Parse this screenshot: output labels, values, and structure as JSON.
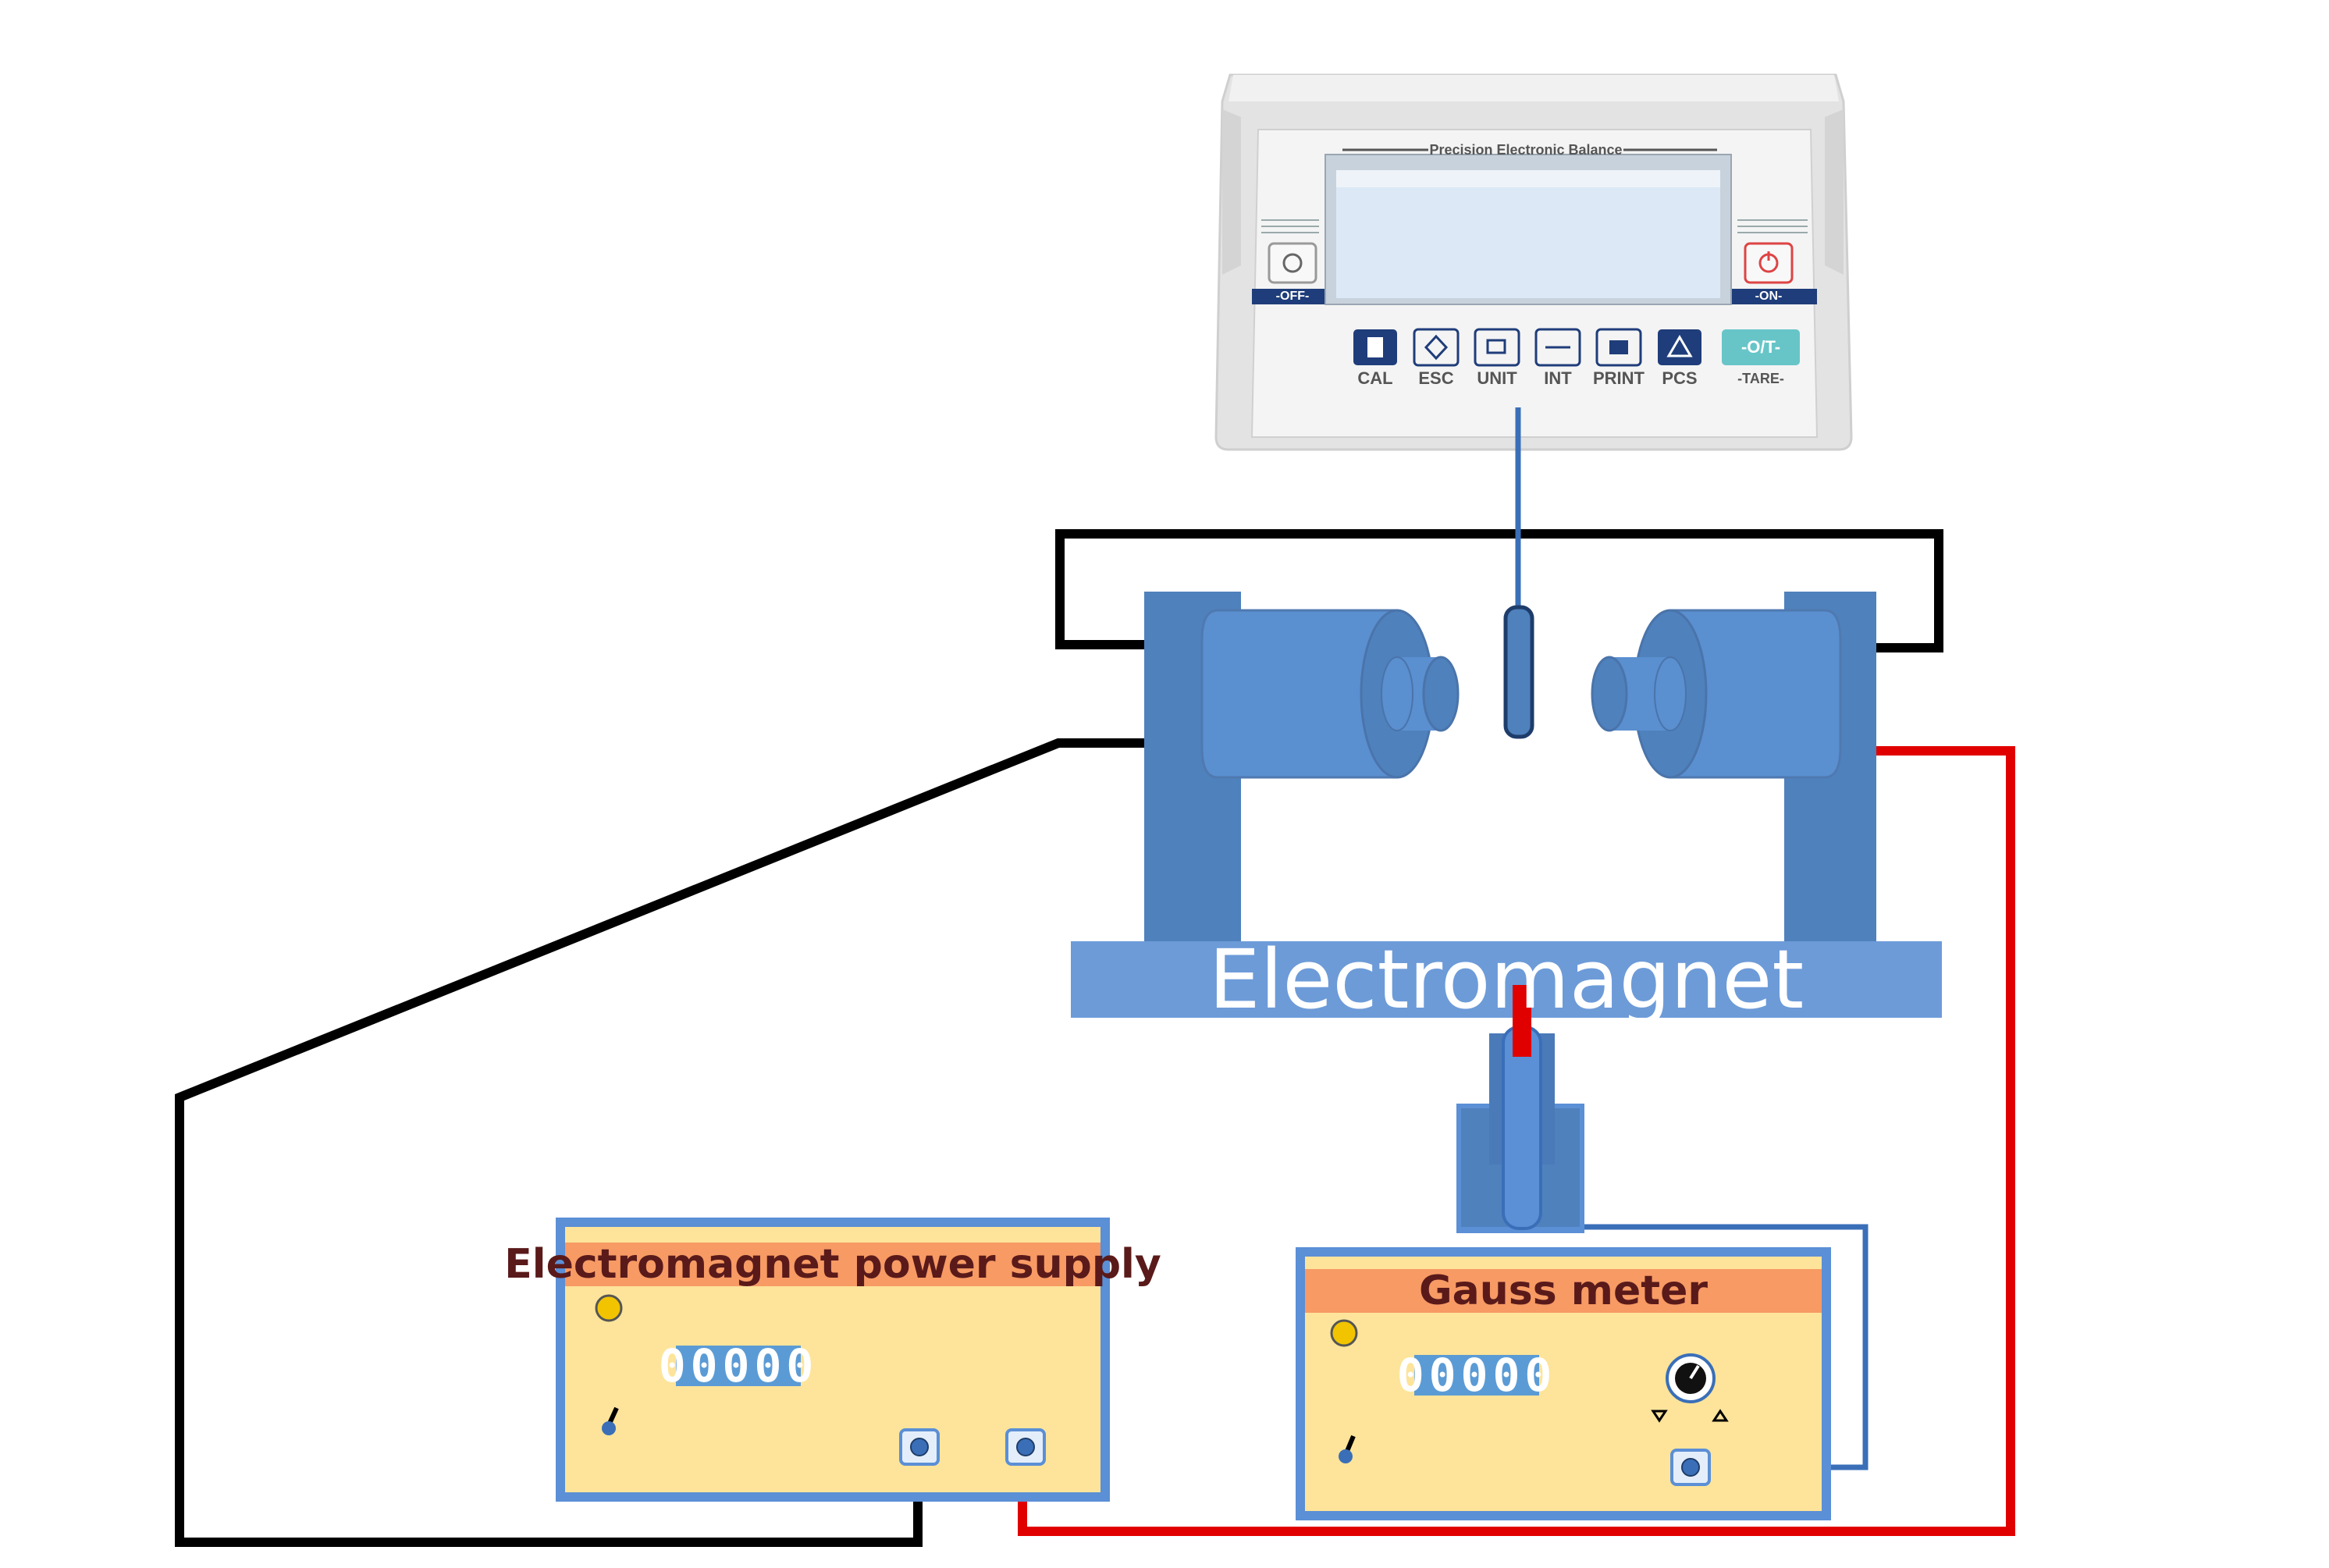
{
  "diagram": {
    "electromagnet_label": "Electromagnet",
    "power_supply": {
      "title": "Electromagnet power supply",
      "display": "00000"
    },
    "gauss_meter": {
      "title": "Gauss meter",
      "display": "00000"
    },
    "balance": {
      "header": "Precision Electronic Balance",
      "off_label": "-OFF-",
      "on_label": "-ON-",
      "tare_button": "-O/T-",
      "tare_label": "-TARE-",
      "keys": [
        "CAL",
        "ESC",
        "UNIT",
        "INT",
        "PRINT",
        "PCS"
      ]
    }
  },
  "colors": {
    "magnet_blue": "#4f81bd",
    "base_blue": "#6d9bd8",
    "panel_fill": "#fde49a",
    "panel_header": "#f79a64",
    "panel_frame": "#5b8fd6",
    "wire_black": "#000000",
    "wire_red": "#e10000",
    "wire_blue": "#3a6fb8",
    "display_blue": "#5b9bd5",
    "balance_body": "#e6e6e6",
    "balance_screen": "#dce8f5",
    "tare_teal": "#67c5c8",
    "key_navy": "#1f3d7a"
  }
}
